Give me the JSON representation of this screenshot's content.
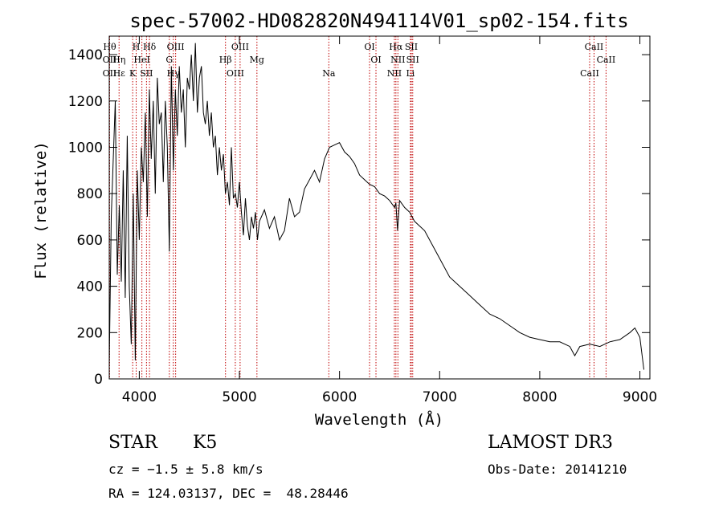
{
  "chart_data": {
    "type": "line",
    "title": "spec-57002-HD082820N494114V01_sp02-154.fits",
    "xlabel": "Wavelength (Å)",
    "ylabel": "Flux (relative)",
    "xlim": [
      3700,
      9100
    ],
    "ylim": [
      0,
      1480
    ],
    "x_ticks": [
      4000,
      5000,
      6000,
      7000,
      8000,
      9000
    ],
    "y_ticks": [
      0,
      200,
      400,
      600,
      800,
      1000,
      1200,
      1400
    ],
    "grid": false,
    "series": [
      {
        "x": [
          3700,
          3720,
          3740,
          3760,
          3780,
          3800,
          3820,
          3840,
          3860,
          3880,
          3900,
          3920,
          3940,
          3960,
          3980,
          4000,
          4020,
          4040,
          4060,
          4080,
          4100,
          4120,
          4140,
          4160,
          4180,
          4200,
          4220,
          4240,
          4260,
          4280,
          4300,
          4320,
          4340,
          4360,
          4380,
          4400,
          4420,
          4440,
          4460,
          4480,
          4500,
          4520,
          4540,
          4560,
          4580,
          4600,
          4620,
          4640,
          4660,
          4680,
          4700,
          4720,
          4740,
          4760,
          4780,
          4800,
          4820,
          4840,
          4860,
          4880,
          4900,
          4920,
          4940,
          4960,
          4980,
          5000,
          5020,
          5040,
          5060,
          5080,
          5100,
          5120,
          5140,
          5160,
          5180,
          5200,
          5250,
          5300,
          5350,
          5400,
          5450,
          5500,
          5550,
          5600,
          5650,
          5700,
          5750,
          5800,
          5850,
          5900,
          5950,
          6000,
          6050,
          6100,
          6150,
          6200,
          6250,
          6300,
          6350,
          6400,
          6450,
          6500,
          6550,
          6563,
          6580,
          6600,
          6650,
          6700,
          6750,
          6800,
          6850,
          6900,
          6950,
          7000,
          7100,
          7200,
          7300,
          7400,
          7500,
          7600,
          7700,
          7800,
          7900,
          8000,
          8100,
          8200,
          8300,
          8350,
          8400,
          8500,
          8600,
          8700,
          8800,
          8900,
          8950,
          9000,
          9040
        ],
        "y": [
          60,
          700,
          950,
          1200,
          450,
          750,
          420,
          900,
          350,
          1050,
          400,
          150,
          800,
          80,
          900,
          600,
          1000,
          850,
          1150,
          700,
          1250,
          950,
          1200,
          800,
          1300,
          1100,
          1150,
          850,
          1200,
          1000,
          550,
          1350,
          900,
          1250,
          1050,
          1350,
          1150,
          1250,
          1000,
          1300,
          1250,
          1400,
          1200,
          1450,
          1150,
          1300,
          1350,
          1150,
          1100,
          1200,
          1050,
          1150,
          1000,
          1050,
          880,
          1000,
          900,
          970,
          800,
          850,
          750,
          1000,
          780,
          800,
          740,
          850,
          720,
          620,
          780,
          660,
          600,
          700,
          650,
          720,
          600,
          680,
          730,
          650,
          700,
          600,
          640,
          780,
          700,
          720,
          820,
          860,
          900,
          850,
          950,
          1000,
          1010,
          1020,
          980,
          960,
          930,
          880,
          860,
          840,
          830,
          800,
          790,
          770,
          740,
          760,
          640,
          770,
          740,
          720,
          680,
          660,
          640,
          600,
          560,
          520,
          440,
          400,
          360,
          320,
          280,
          260,
          230,
          200,
          180,
          170,
          160,
          160,
          140,
          100,
          140,
          150,
          140,
          160,
          170,
          200,
          220,
          180,
          40
        ]
      }
    ],
    "line_markers": [
      {
        "x": 3704,
        "labels": [
          "Hθ",
          "OII",
          "OII"
        ]
      },
      {
        "x": 3798,
        "labels": [
          "Hη",
          "Hε"
        ]
      },
      {
        "x": 3934,
        "labels": [
          "K"
        ]
      },
      {
        "x": 3969,
        "labels": [
          "H"
        ]
      },
      {
        "x": 4026,
        "labels": [
          "HeI"
        ]
      },
      {
        "x": 4072,
        "labels": [
          "SII"
        ]
      },
      {
        "x": 4102,
        "labels": [
          "Hδ"
        ]
      },
      {
        "x": 4300,
        "labels": [
          "G"
        ]
      },
      {
        "x": 4340,
        "labels": [
          "Hγ"
        ]
      },
      {
        "x": 4363,
        "labels": [
          "OIII"
        ]
      },
      {
        "x": 4861,
        "labels": [
          "Hβ"
        ]
      },
      {
        "x": 4959,
        "labels": [
          "OIII"
        ]
      },
      {
        "x": 5007,
        "labels": [
          "OIII"
        ]
      },
      {
        "x": 5175,
        "labels": [
          "Mg"
        ]
      },
      {
        "x": 5893,
        "labels": [
          "Na"
        ]
      },
      {
        "x": 6300,
        "labels": [
          "OI"
        ]
      },
      {
        "x": 6364,
        "labels": [
          "OI"
        ]
      },
      {
        "x": 6548,
        "labels": [
          "NII"
        ]
      },
      {
        "x": 6563,
        "labels": [
          "Hα"
        ]
      },
      {
        "x": 6583,
        "labels": [
          "NII"
        ]
      },
      {
        "x": 6708,
        "labels": [
          "Li"
        ]
      },
      {
        "x": 6717,
        "labels": [
          "SII"
        ]
      },
      {
        "x": 6731,
        "labels": [
          "SII"
        ]
      },
      {
        "x": 8498,
        "labels": [
          "CaII"
        ]
      },
      {
        "x": 8542,
        "labels": [
          "CaII"
        ]
      },
      {
        "x": 8662,
        "labels": [
          "CaII"
        ]
      }
    ],
    "colors": {
      "spectrum": "#000000",
      "marker": "#c00000",
      "axes": "#000000"
    }
  },
  "info": {
    "class_label": "STAR",
    "subclass": "K5",
    "survey": "LAMOST DR3",
    "cz_line": "cz = −1.5 ± 5.8 km/s",
    "obs_date": "Obs-Date: 20141210",
    "radec_line": "RA = 124.03137, DEC =  48.28446"
  }
}
